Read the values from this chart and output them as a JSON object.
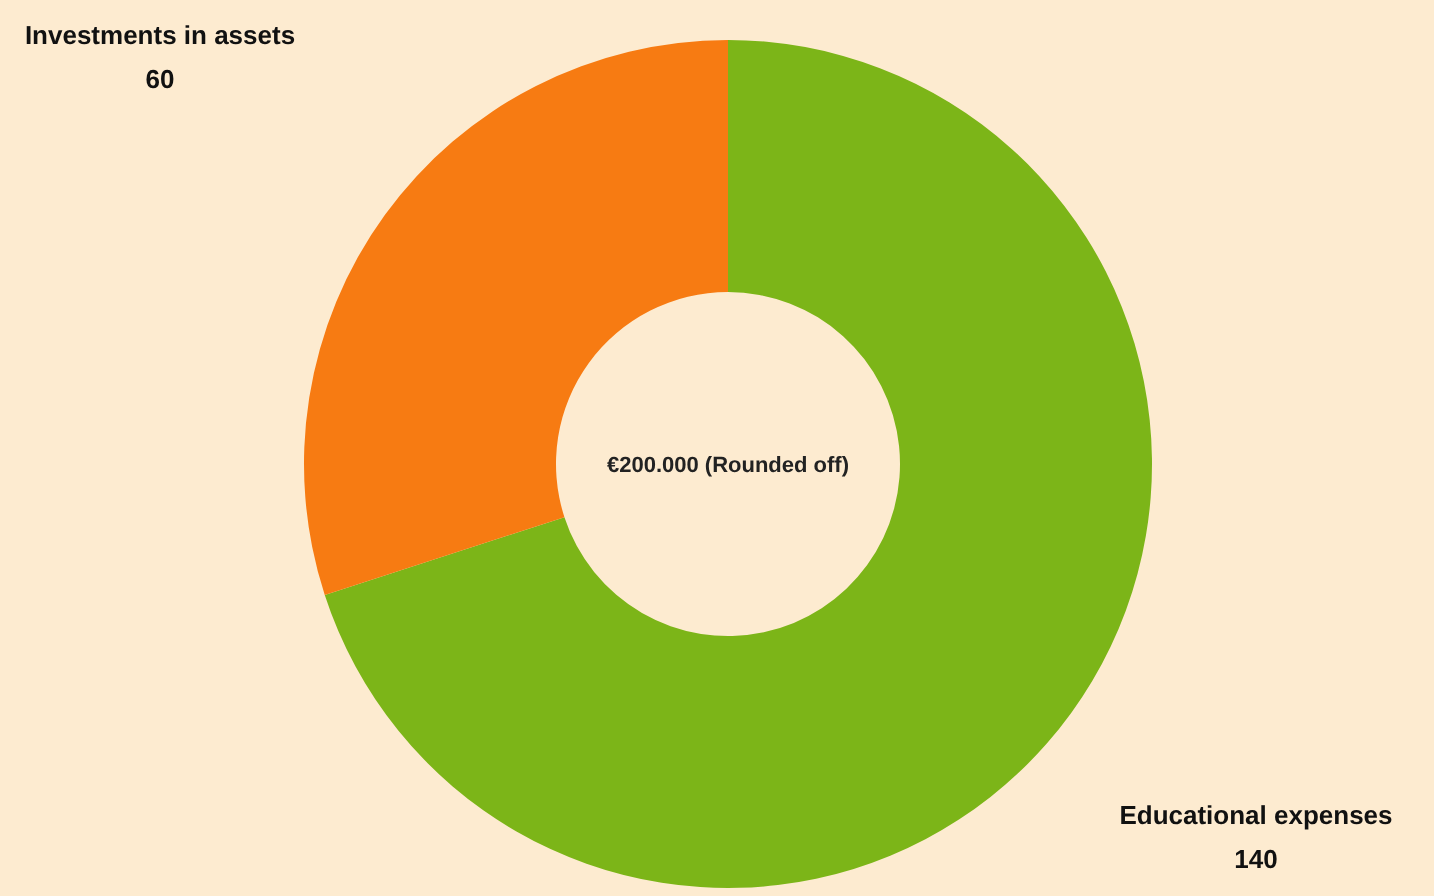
{
  "chart_data": {
    "type": "donut",
    "categories": [
      "Educational expenses",
      "Investments in assets"
    ],
    "values": [
      140,
      60
    ],
    "colors": [
      "#7cb518",
      "#f77b12"
    ],
    "data_labels": true,
    "annotations": [
      "€200.000 (Rounded off)"
    ]
  }
}
